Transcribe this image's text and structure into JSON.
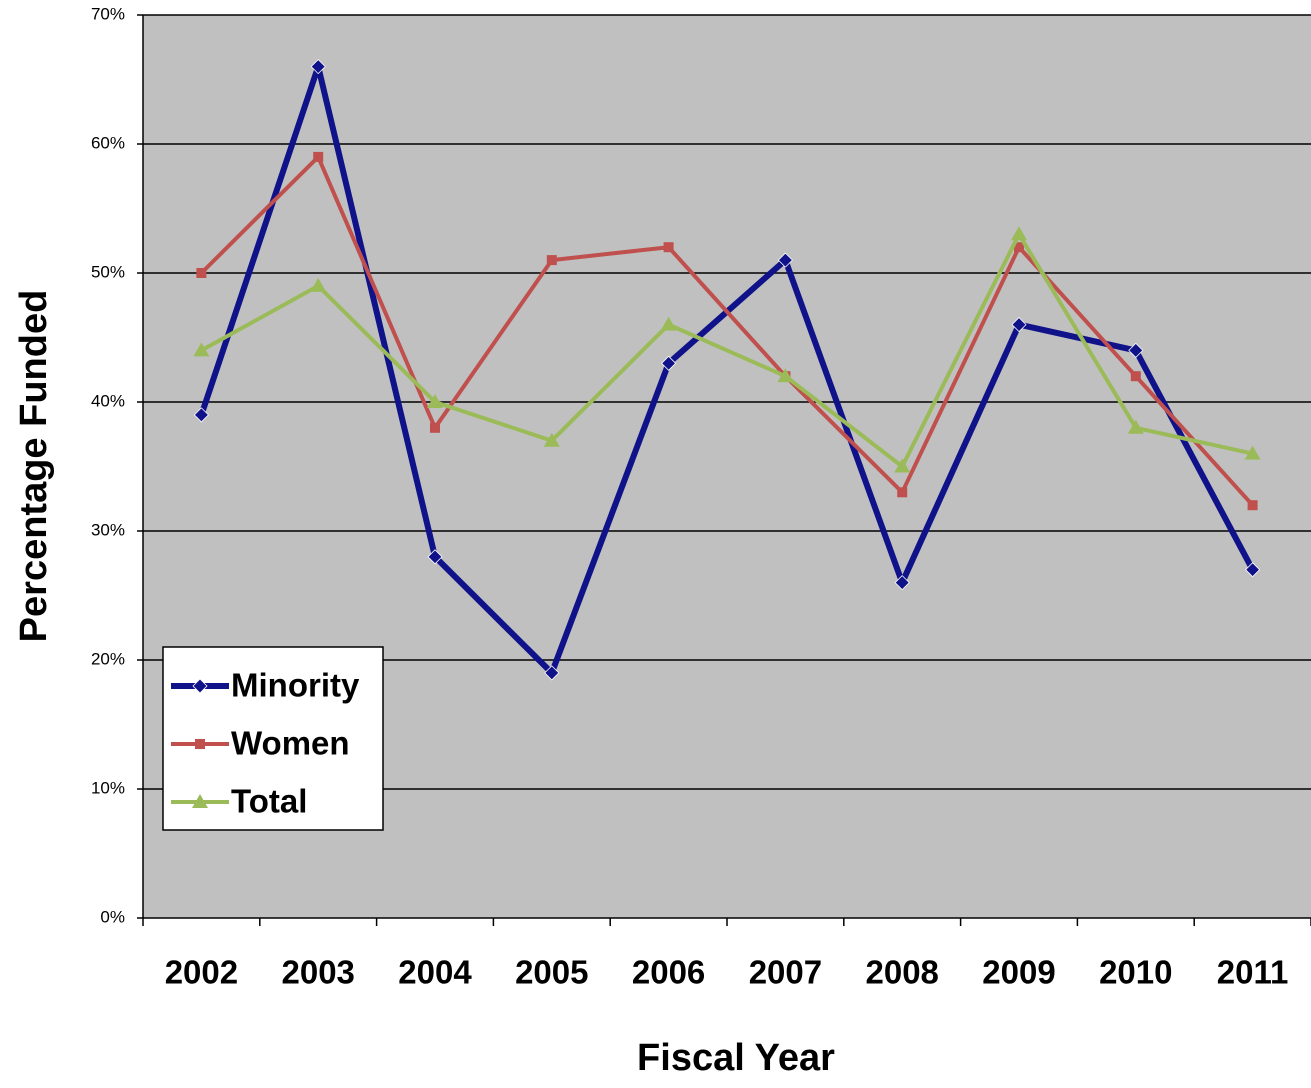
{
  "chart_data": {
    "type": "line",
    "x_label": "Fiscal Year",
    "y_label": "Percentage Funded",
    "categories": [
      "2002",
      "2003",
      "2004",
      "2005",
      "2006",
      "2007",
      "2008",
      "2009",
      "2010",
      "2011"
    ],
    "series": [
      {
        "name": "Minority",
        "color": "#10128a",
        "marker": "diamond",
        "values": [
          39,
          66,
          28,
          19,
          43,
          51,
          26,
          46,
          44,
          27
        ]
      },
      {
        "name": "Women",
        "color": "#c0504d",
        "marker": "square",
        "values": [
          50,
          59,
          38,
          51,
          52,
          42,
          33,
          52,
          42,
          32
        ]
      },
      {
        "name": "Total",
        "color": "#9bbb59",
        "marker": "triangle",
        "values": [
          44,
          49,
          40,
          37,
          46,
          42,
          35,
          53,
          38,
          36
        ]
      }
    ],
    "ylim": [
      0,
      70
    ],
    "yticks": [
      {
        "value": 0,
        "label": "0%"
      },
      {
        "value": 10,
        "label": "10%"
      },
      {
        "value": 20,
        "label": "20%"
      },
      {
        "value": 30,
        "label": "30%"
      },
      {
        "value": 40,
        "label": "40%"
      },
      {
        "value": 50,
        "label": "50%"
      },
      {
        "value": 60,
        "label": "60%"
      },
      {
        "value": 70,
        "label": "70%"
      }
    ],
    "grid": true,
    "legend_position": "lower left"
  }
}
